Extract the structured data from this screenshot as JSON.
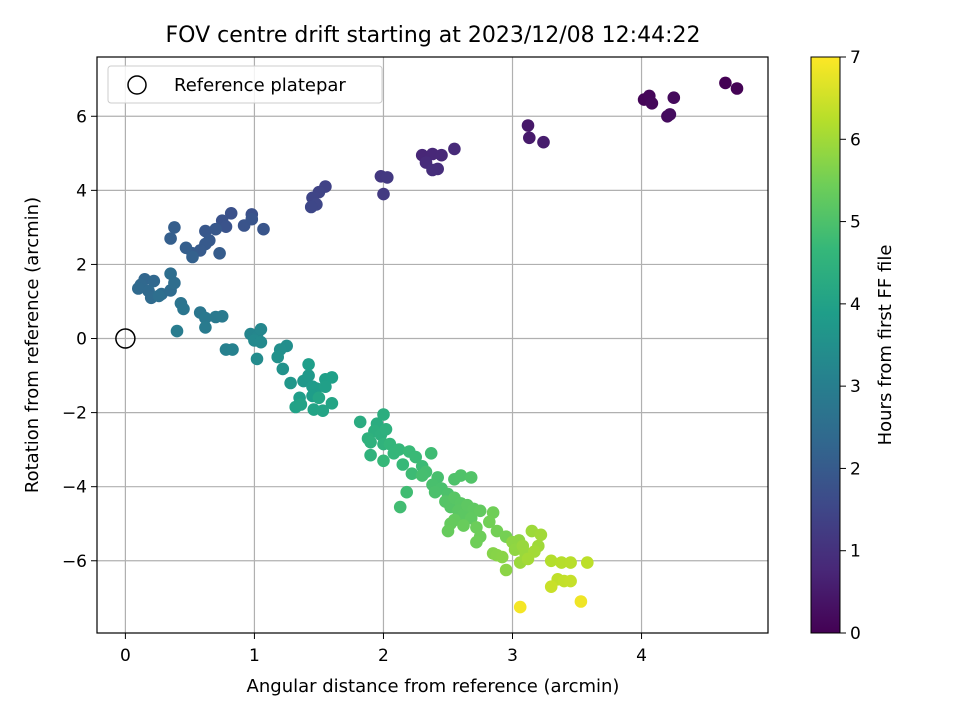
{
  "chart_data": {
    "type": "scatter",
    "title": "FOV centre drift starting at 2023/12/08 12:44:22",
    "xlabel": "Angular distance from reference (arcmin)",
    "ylabel": "Rotation from reference (arcmin)",
    "xlim": [
      -0.22,
      4.98
    ],
    "ylim": [
      -7.95,
      7.6
    ],
    "xticks": [
      0,
      1,
      2,
      3,
      4
    ],
    "yticks": [
      -6,
      -4,
      -2,
      0,
      2,
      4,
      6
    ],
    "grid": true,
    "legend": {
      "placement": "top-left",
      "entries": [
        {
          "label": "Reference platepar",
          "marker": "open-circle"
        }
      ]
    },
    "reference_point": {
      "x": 0,
      "y": 0
    },
    "colorbar": {
      "label": "Hours from first FF file",
      "range": [
        0,
        7
      ],
      "ticks": [
        0,
        1,
        2,
        3,
        4,
        5,
        6,
        7
      ],
      "colormap": "viridis",
      "colormap_stops": [
        "#440154",
        "#482878",
        "#3e4989",
        "#31688e",
        "#26828e",
        "#1f9e89",
        "#35b779",
        "#6ece58",
        "#b5de2b",
        "#fde725"
      ]
    },
    "points": [
      [
        4.65,
        6.9,
        0.0
      ],
      [
        4.74,
        6.75,
        0.03
      ],
      [
        4.02,
        6.45,
        0.07
      ],
      [
        4.06,
        6.55,
        0.1
      ],
      [
        4.08,
        6.35,
        0.13
      ],
      [
        4.25,
        6.5,
        0.17
      ],
      [
        4.2,
        6.0,
        0.2
      ],
      [
        4.22,
        6.05,
        0.23
      ],
      [
        3.12,
        5.75,
        0.45
      ],
      [
        3.13,
        5.42,
        0.5
      ],
      [
        3.24,
        5.3,
        0.55
      ],
      [
        2.3,
        4.95,
        0.75
      ],
      [
        2.38,
        4.98,
        0.78
      ],
      [
        2.45,
        4.95,
        0.8
      ],
      [
        2.55,
        5.12,
        0.83
      ],
      [
        2.33,
        4.75,
        0.86
      ],
      [
        2.42,
        4.58,
        0.9
      ],
      [
        2.38,
        4.55,
        0.92
      ],
      [
        1.98,
        4.38,
        1.15
      ],
      [
        2.03,
        4.35,
        1.18
      ],
      [
        2.0,
        3.9,
        1.2
      ],
      [
        1.55,
        4.1,
        1.4
      ],
      [
        1.5,
        3.95,
        1.43
      ],
      [
        1.45,
        3.8,
        1.46
      ],
      [
        1.48,
        3.62,
        1.5
      ],
      [
        1.44,
        3.55,
        1.52
      ],
      [
        0.98,
        3.35,
        1.72
      ],
      [
        0.82,
        3.38,
        1.75
      ],
      [
        0.75,
        3.18,
        1.78
      ],
      [
        0.78,
        3.02,
        1.8
      ],
      [
        0.92,
        3.05,
        1.82
      ],
      [
        0.98,
        3.22,
        1.84
      ],
      [
        1.07,
        2.95,
        1.86
      ],
      [
        0.62,
        2.9,
        1.9
      ],
      [
        0.7,
        2.95,
        1.92
      ],
      [
        0.65,
        2.65,
        1.95
      ],
      [
        0.62,
        2.55,
        1.97
      ],
      [
        0.58,
        2.38,
        2.0
      ],
      [
        0.52,
        2.3,
        2.02
      ],
      [
        0.73,
        2.3,
        2.04
      ],
      [
        0.38,
        3.0,
        2.08
      ],
      [
        0.35,
        2.7,
        2.1
      ],
      [
        0.47,
        2.45,
        2.12
      ],
      [
        0.52,
        2.2,
        2.15
      ],
      [
        0.15,
        1.6,
        2.3
      ],
      [
        0.22,
        1.55,
        2.33
      ],
      [
        0.12,
        1.45,
        2.36
      ],
      [
        0.1,
        1.35,
        2.38
      ],
      [
        0.18,
        1.28,
        2.4
      ],
      [
        0.2,
        1.1,
        2.42
      ],
      [
        0.28,
        1.2,
        2.44
      ],
      [
        0.35,
        1.3,
        2.46
      ],
      [
        0.38,
        1.5,
        2.5
      ],
      [
        0.35,
        1.75,
        2.52
      ],
      [
        0.26,
        1.15,
        2.54
      ],
      [
        0.43,
        0.95,
        2.7
      ],
      [
        0.45,
        0.8,
        2.73
      ],
      [
        0.58,
        0.7,
        2.76
      ],
      [
        0.62,
        0.55,
        2.8
      ],
      [
        0.7,
        0.58,
        2.83
      ],
      [
        0.75,
        0.6,
        2.86
      ],
      [
        0.62,
        0.3,
        2.9
      ],
      [
        0.4,
        0.2,
        2.93
      ],
      [
        0.78,
        -0.3,
        3.05
      ],
      [
        0.83,
        -0.3,
        3.08
      ],
      [
        0.97,
        0.12,
        3.2
      ],
      [
        1.02,
        0.05,
        3.23
      ],
      [
        1.05,
        0.25,
        3.26
      ],
      [
        1.0,
        -0.05,
        3.3
      ],
      [
        1.05,
        -0.1,
        3.33
      ],
      [
        1.02,
        -0.55,
        3.36
      ],
      [
        1.25,
        -0.2,
        3.45
      ],
      [
        1.2,
        -0.3,
        3.48
      ],
      [
        1.18,
        -0.5,
        3.52
      ],
      [
        1.22,
        -0.82,
        3.55
      ],
      [
        1.28,
        -1.2,
        3.7
      ],
      [
        1.38,
        -1.15,
        3.73
      ],
      [
        1.42,
        -1.0,
        3.76
      ],
      [
        1.45,
        -1.3,
        3.8
      ],
      [
        1.48,
        -1.35,
        3.83
      ],
      [
        1.45,
        -1.55,
        3.86
      ],
      [
        1.35,
        -1.6,
        3.88
      ],
      [
        1.42,
        -0.7,
        3.9
      ],
      [
        1.55,
        -1.1,
        3.92
      ],
      [
        1.6,
        -1.05,
        3.94
      ],
      [
        1.55,
        -1.3,
        3.96
      ],
      [
        1.32,
        -1.85,
        4.0
      ],
      [
        1.36,
        -1.78,
        4.02
      ],
      [
        1.46,
        -1.92,
        4.04
      ],
      [
        1.53,
        -1.95,
        4.06
      ],
      [
        1.6,
        -1.75,
        4.08
      ],
      [
        1.5,
        -1.6,
        4.1
      ],
      [
        1.82,
        -2.25,
        4.3
      ],
      [
        1.95,
        -2.3,
        4.33
      ],
      [
        2.0,
        -2.05,
        4.36
      ],
      [
        1.93,
        -2.5,
        4.4
      ],
      [
        1.98,
        -2.6,
        4.42
      ],
      [
        2.02,
        -2.45,
        4.44
      ],
      [
        1.88,
        -2.7,
        4.46
      ],
      [
        1.9,
        -2.8,
        4.48
      ],
      [
        1.9,
        -3.15,
        4.5
      ],
      [
        2.0,
        -2.85,
        4.52
      ],
      [
        2.05,
        -2.85,
        4.6
      ],
      [
        2.08,
        -3.1,
        4.62
      ],
      [
        2.12,
        -3.0,
        4.65
      ],
      [
        2.0,
        -3.3,
        4.68
      ],
      [
        2.15,
        -3.4,
        4.7
      ],
      [
        2.2,
        -3.05,
        4.72
      ],
      [
        2.25,
        -3.2,
        4.74
      ],
      [
        2.3,
        -3.45,
        4.76
      ],
      [
        2.22,
        -3.65,
        4.78
      ],
      [
        2.37,
        -3.1,
        4.8
      ],
      [
        2.18,
        -4.15,
        4.82
      ],
      [
        2.13,
        -4.55,
        4.84
      ],
      [
        2.33,
        -3.6,
        4.88
      ],
      [
        2.3,
        -3.7,
        4.9
      ],
      [
        2.42,
        -3.75,
        4.92
      ],
      [
        2.38,
        -3.95,
        4.94
      ],
      [
        2.45,
        -4.05,
        4.96
      ],
      [
        2.4,
        -4.15,
        4.98
      ],
      [
        2.5,
        -4.2,
        5.0
      ],
      [
        2.55,
        -3.8,
        5.02
      ],
      [
        2.6,
        -3.7,
        5.04
      ],
      [
        2.68,
        -3.75,
        5.06
      ],
      [
        2.48,
        -4.4,
        5.1
      ],
      [
        2.52,
        -4.55,
        5.12
      ],
      [
        2.55,
        -4.3,
        5.14
      ],
      [
        2.6,
        -4.45,
        5.16
      ],
      [
        2.58,
        -4.65,
        5.18
      ],
      [
        2.62,
        -4.75,
        5.2
      ],
      [
        2.65,
        -4.5,
        5.22
      ],
      [
        2.7,
        -4.6,
        5.24
      ],
      [
        2.68,
        -4.85,
        5.26
      ],
      [
        2.75,
        -4.65,
        5.28
      ],
      [
        2.55,
        -4.9,
        5.3
      ],
      [
        2.52,
        -5.0,
        5.32
      ],
      [
        2.5,
        -5.2,
        5.34
      ],
      [
        2.62,
        -5.05,
        5.36
      ],
      [
        2.72,
        -5.1,
        5.4
      ],
      [
        2.75,
        -5.35,
        5.42
      ],
      [
        2.72,
        -5.5,
        5.44
      ],
      [
        2.85,
        -4.7,
        5.46
      ],
      [
        2.82,
        -4.95,
        5.48
      ],
      [
        2.88,
        -5.2,
        5.5
      ],
      [
        2.95,
        -5.35,
        5.52
      ],
      [
        2.85,
        -5.8,
        5.7
      ],
      [
        2.88,
        -5.85,
        5.72
      ],
      [
        2.92,
        -5.9,
        5.74
      ],
      [
        2.95,
        -6.25,
        5.76
      ],
      [
        3.0,
        -5.5,
        5.78
      ],
      [
        3.05,
        -5.45,
        5.8
      ],
      [
        3.02,
        -5.7,
        5.82
      ],
      [
        3.08,
        -5.6,
        5.9
      ],
      [
        3.1,
        -5.8,
        5.92
      ],
      [
        3.06,
        -6.05,
        5.94
      ],
      [
        3.15,
        -5.2,
        5.96
      ],
      [
        3.2,
        -5.6,
        5.98
      ],
      [
        3.22,
        -5.3,
        6.0
      ],
      [
        3.17,
        -5.75,
        6.02
      ],
      [
        3.12,
        -5.95,
        6.04
      ],
      [
        3.3,
        -6.0,
        6.2
      ],
      [
        3.38,
        -6.05,
        6.23
      ],
      [
        3.45,
        -6.05,
        6.26
      ],
      [
        3.58,
        -6.05,
        6.3
      ],
      [
        3.35,
        -6.5,
        6.33
      ],
      [
        3.4,
        -6.55,
        6.36
      ],
      [
        3.45,
        -6.55,
        6.4
      ],
      [
        3.3,
        -6.7,
        6.43
      ],
      [
        3.53,
        -7.1,
        6.85
      ],
      [
        3.06,
        -7.25,
        6.9
      ]
    ]
  }
}
